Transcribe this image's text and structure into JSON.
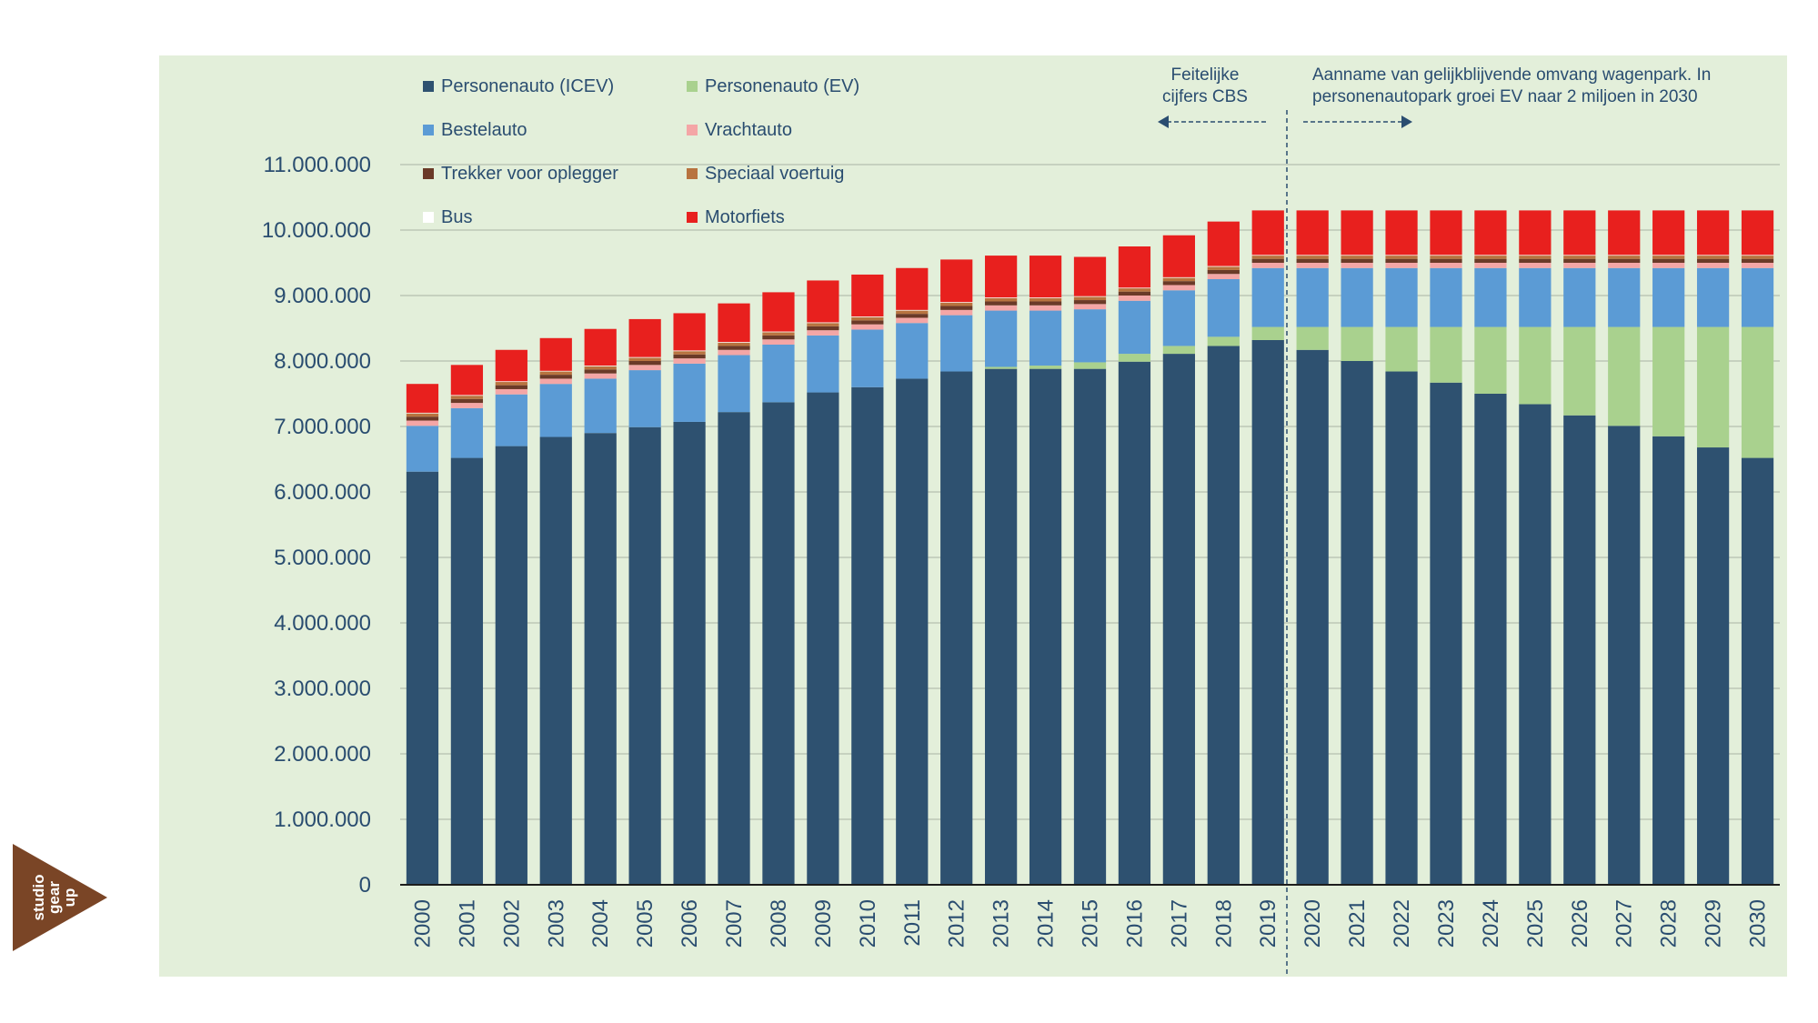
{
  "chart_data": {
    "type": "bar",
    "stacked": true,
    "categories": [
      "2000",
      "2001",
      "2002",
      "2003",
      "2004",
      "2005",
      "2006",
      "2007",
      "2008",
      "2009",
      "2010",
      "2011",
      "2012",
      "2013",
      "2014",
      "2015",
      "2016",
      "2017",
      "2018",
      "2019",
      "2020",
      "2021",
      "2022",
      "2023",
      "2024",
      "2025",
      "2026",
      "2027",
      "2028",
      "2029",
      "2030"
    ],
    "ylim": [
      0,
      11000000
    ],
    "yticks": [
      "0",
      "1.000.000",
      "2.000.000",
      "3.000.000",
      "4.000.000",
      "5.000.000",
      "6.000.000",
      "7.000.000",
      "8.000.000",
      "9.000.000",
      "10.000.000",
      "11.000.000"
    ],
    "legend_position": "top-left",
    "grid": true,
    "series": [
      {
        "name": "Personenauto (ICEV)",
        "color": "#2e5170",
        "values": [
          6310000,
          6520000,
          6700000,
          6840000,
          6900000,
          6990000,
          7070000,
          7220000,
          7370000,
          7520000,
          7600000,
          7730000,
          7840000,
          7880000,
          7880000,
          7880000,
          7990000,
          8110000,
          8230000,
          8320000,
          8170000,
          8000000,
          7840000,
          7670000,
          7500000,
          7340000,
          7170000,
          7010000,
          6850000,
          6680000,
          6520000
        ]
      },
      {
        "name": "Personenauto (EV)",
        "color": "#a9d18e",
        "values": [
          0,
          0,
          0,
          0,
          0,
          0,
          0,
          0,
          0,
          0,
          0,
          0,
          0,
          30000,
          50000,
          100000,
          120000,
          120000,
          140000,
          200000,
          350000,
          520000,
          680000,
          850000,
          1020000,
          1180000,
          1350000,
          1510000,
          1670000,
          1840000,
          2000000
        ]
      },
      {
        "name": "Bestelauto",
        "color": "#5b9bd5",
        "values": [
          700000,
          760000,
          790000,
          810000,
          830000,
          870000,
          890000,
          870000,
          880000,
          870000,
          880000,
          850000,
          860000,
          860000,
          840000,
          810000,
          810000,
          850000,
          880000,
          900000,
          900000,
          900000,
          900000,
          900000,
          900000,
          900000,
          900000,
          900000,
          900000,
          900000,
          900000
        ]
      },
      {
        "name": "Vrachtauto",
        "color": "#f4a6a6",
        "values": [
          80000,
          80000,
          80000,
          80000,
          80000,
          80000,
          80000,
          80000,
          80000,
          80000,
          80000,
          80000,
          80000,
          80000,
          80000,
          80000,
          80000,
          80000,
          80000,
          80000,
          80000,
          80000,
          80000,
          80000,
          80000,
          80000,
          80000,
          80000,
          80000,
          80000,
          80000
        ]
      },
      {
        "name": "Trekker voor oplegger",
        "color": "#6b3a28",
        "values": [
          60000,
          60000,
          60000,
          60000,
          60000,
          60000,
          60000,
          60000,
          60000,
          60000,
          60000,
          60000,
          60000,
          60000,
          60000,
          60000,
          60000,
          60000,
          60000,
          60000,
          60000,
          60000,
          60000,
          60000,
          60000,
          60000,
          60000,
          60000,
          60000,
          60000,
          60000
        ]
      },
      {
        "name": "Speciaal voertuig",
        "color": "#b8733f",
        "values": [
          50000,
          50000,
          50000,
          50000,
          50000,
          50000,
          50000,
          50000,
          50000,
          50000,
          50000,
          50000,
          50000,
          50000,
          50000,
          50000,
          50000,
          50000,
          50000,
          50000,
          50000,
          50000,
          50000,
          50000,
          50000,
          50000,
          50000,
          50000,
          50000,
          50000,
          50000
        ]
      },
      {
        "name": "Bus",
        "color": "#ffffff",
        "values": [
          10000,
          10000,
          10000,
          10000,
          10000,
          10000,
          10000,
          10000,
          10000,
          10000,
          10000,
          10000,
          10000,
          10000,
          10000,
          10000,
          10000,
          10000,
          10000,
          10000,
          10000,
          10000,
          10000,
          10000,
          10000,
          10000,
          10000,
          10000,
          10000,
          10000,
          10000
        ]
      },
      {
        "name": "Motorfiets",
        "color": "#e8201e",
        "values": [
          440000,
          460000,
          480000,
          500000,
          560000,
          580000,
          570000,
          590000,
          600000,
          640000,
          640000,
          640000,
          650000,
          640000,
          640000,
          600000,
          630000,
          640000,
          680000,
          680000,
          680000,
          680000,
          680000,
          680000,
          680000,
          680000,
          680000,
          680000,
          680000,
          680000,
          680000
        ]
      }
    ],
    "annotations": {
      "left_line1": "Feitelijke",
      "left_line2": "cijfers CBS",
      "right_line1": "Aanname van gelijkblijvende omvang wagenpark. In",
      "right_line2": "personenautopark groei EV naar 2 miljoen in 2030"
    }
  },
  "logo": {
    "line1": "studio",
    "line2": "gear",
    "line3": "up",
    "color": "#7a4526"
  }
}
